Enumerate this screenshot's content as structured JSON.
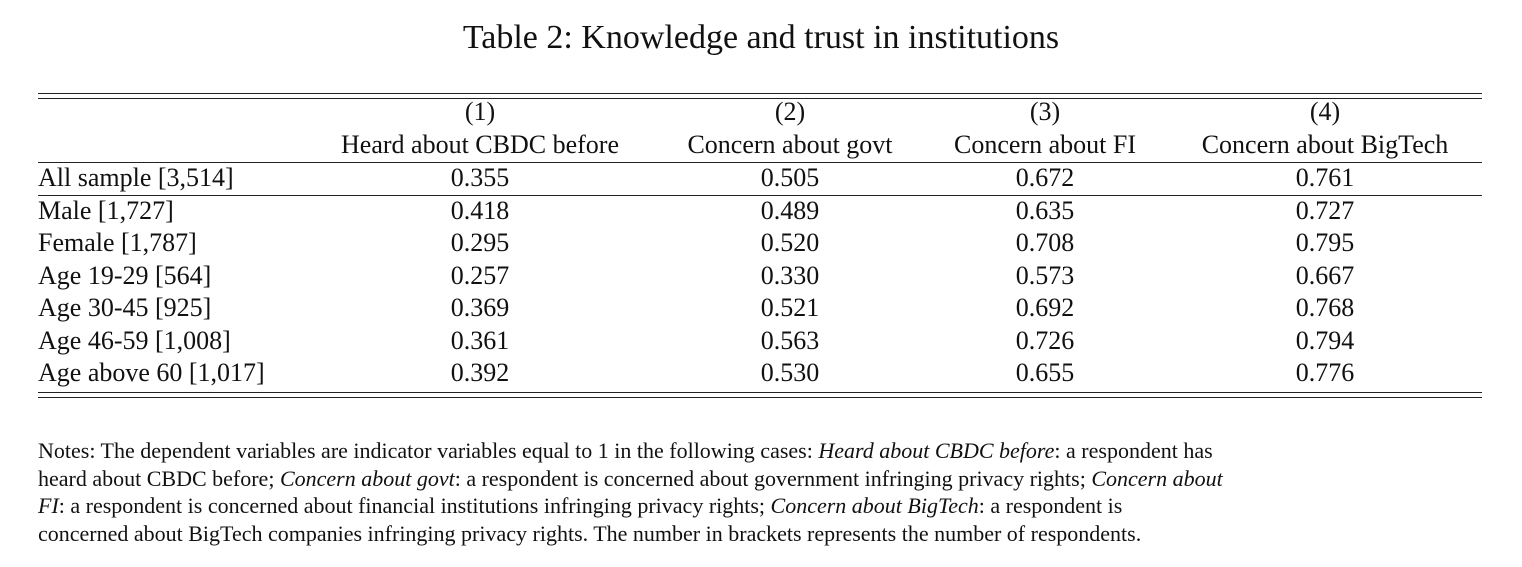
{
  "title": "Table 2: Knowledge and trust in institutions",
  "table": {
    "column_numbers": [
      "(1)",
      "(2)",
      "(3)",
      "(4)"
    ],
    "column_headers": [
      "Heard about CBDC before",
      "Concern about govt",
      "Concern about FI",
      "Concern about BigTech"
    ],
    "rows": [
      {
        "label": "All sample [3,514]",
        "values": [
          "0.355",
          "0.505",
          "0.672",
          "0.761"
        ]
      },
      {
        "label": "Male [1,727]",
        "values": [
          "0.418",
          "0.489",
          "0.635",
          "0.727"
        ]
      },
      {
        "label": "Female [1,787]",
        "values": [
          "0.295",
          "0.520",
          "0.708",
          "0.795"
        ]
      },
      {
        "label": "Age 19-29 [564]",
        "values": [
          "0.257",
          "0.330",
          "0.573",
          "0.667"
        ]
      },
      {
        "label": "Age 30-45 [925]",
        "values": [
          "0.369",
          "0.521",
          "0.692",
          "0.768"
        ]
      },
      {
        "label": "Age 46-59 [1,008]",
        "values": [
          "0.361",
          "0.563",
          "0.726",
          "0.794"
        ]
      },
      {
        "label": "Age above 60 [1,017]",
        "values": [
          "0.392",
          "0.530",
          "0.655",
          "0.776"
        ]
      }
    ]
  },
  "notes": {
    "lines": [
      [
        {
          "text": "Notes: The dependent variables are indicator variables equal to 1 in the following cases: ",
          "italic": false
        },
        {
          "text": "Heard about CBDC before",
          "italic": true
        },
        {
          "text": ": a respondent has",
          "italic": false
        }
      ],
      [
        {
          "text": "heard about CBDC before; ",
          "italic": false
        },
        {
          "text": "Concern about govt",
          "italic": true
        },
        {
          "text": ": a respondent is concerned about government infringing privacy rights; ",
          "italic": false
        },
        {
          "text": "Concern about",
          "italic": true
        }
      ],
      [
        {
          "text": "FI",
          "italic": true
        },
        {
          "text": ": a respondent is concerned about financial institutions infringing privacy rights; ",
          "italic": false
        },
        {
          "text": "Concern about BigTech",
          "italic": true
        },
        {
          "text": ": a respondent is",
          "italic": false
        }
      ],
      [
        {
          "text": "concerned about BigTech companies infringing privacy rights. The number in brackets represents the number of respondents.",
          "italic": false
        }
      ]
    ]
  }
}
